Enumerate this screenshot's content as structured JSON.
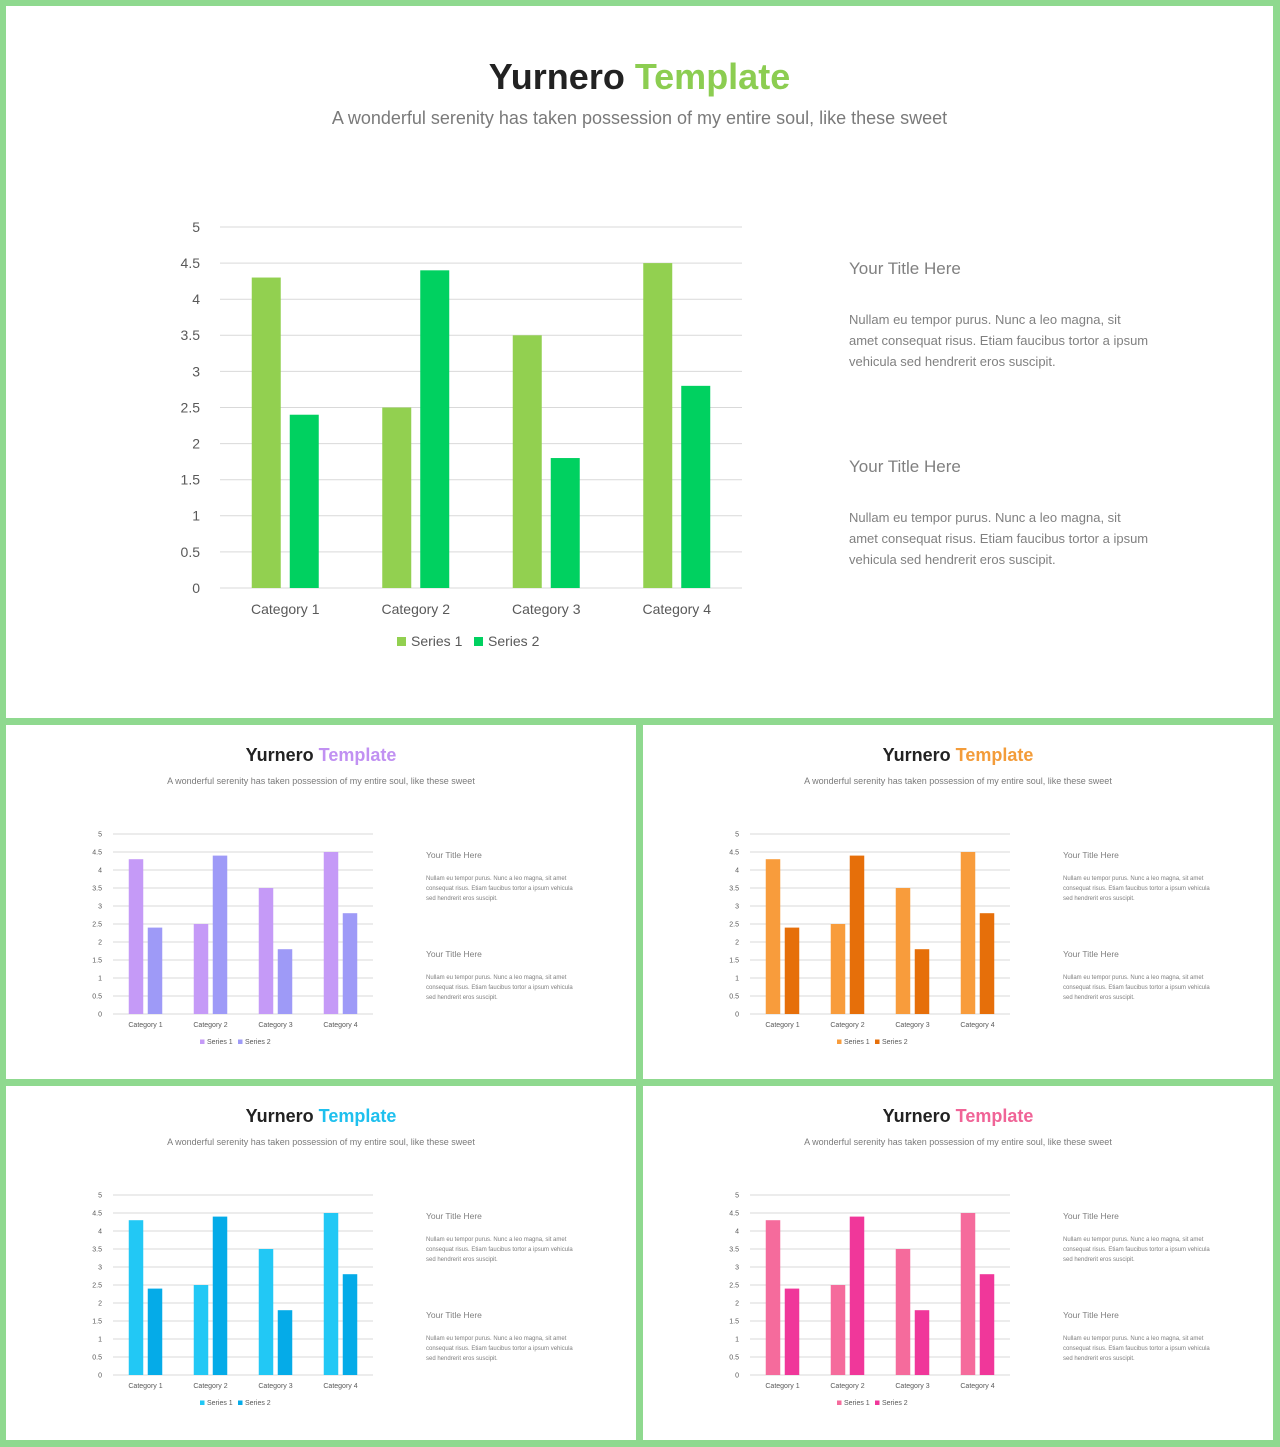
{
  "slides": [
    {
      "id": "main",
      "title_part1": "Yurnero",
      "title_part2": "Template",
      "accent_color": "#8ccd51",
      "subtitle": "A wonderful serenity has taken possession of my entire soul, like these sweet",
      "series_colors": [
        "#92d050",
        "#00d160"
      ],
      "blocks": [
        {
          "heading": "Your Title Here",
          "body": "Nullam eu tempor purus. Nunc a leo magna, sit amet consequat risus. Etiam faucibus tortor a ipsum vehicula sed hendrerit eros suscipit."
        },
        {
          "heading": "Your Title Here",
          "body": "Nullam eu tempor purus. Nunc a leo magna, sit amet consequat risus. Etiam faucibus tortor a ipsum vehicula sed hendrerit eros suscipit."
        }
      ]
    },
    {
      "id": "purple",
      "title_part1": "Yurnero",
      "title_part2": "Template",
      "accent_color": "#c191f2",
      "subtitle": "A wonderful serenity has taken possession of my entire soul, like these sweet",
      "series_colors": [
        "#c59af7",
        "#9e9af7"
      ],
      "blocks": [
        {
          "heading": "Your Title Here",
          "body": "Nullam eu tempor purus. Nunc a leo magna, sit amet consequat risus. Etiam faucibus tortor a ipsum vehicula sed hendrerit eros suscipit."
        },
        {
          "heading": "Your Title Here",
          "body": "Nullam eu tempor purus. Nunc a leo magna, sit amet consequat risus. Etiam faucibus tortor a ipsum vehicula sed hendrerit eros suscipit."
        }
      ]
    },
    {
      "id": "orange",
      "title_part1": "Yurnero",
      "title_part2": "Template",
      "accent_color": "#f39c3a",
      "subtitle": "A wonderful serenity has taken possession of my entire soul, like these sweet",
      "series_colors": [
        "#f89c3c",
        "#e66f0a"
      ],
      "blocks": [
        {
          "heading": "Your Title Here",
          "body": "Nullam eu tempor purus. Nunc a leo magna, sit amet consequat risus. Etiam faucibus tortor a ipsum vehicula sed hendrerit eros suscipit."
        },
        {
          "heading": "Your Title Here",
          "body": "Nullam eu tempor purus. Nunc a leo magna, sit amet consequat risus. Etiam faucibus tortor a ipsum vehicula sed hendrerit eros suscipit."
        }
      ]
    },
    {
      "id": "blue",
      "title_part1": "Yurnero",
      "title_part2": "Template",
      "accent_color": "#1fc0ee",
      "subtitle": "A wonderful serenity has taken possession of my entire soul, like these sweet",
      "series_colors": [
        "#22c8f5",
        "#05abe8"
      ],
      "blocks": [
        {
          "heading": "Your Title Here",
          "body": "Nullam eu tempor purus. Nunc a leo magna, sit amet consequat risus. Etiam faucibus tortor a ipsum vehicula sed hendrerit eros suscipit."
        },
        {
          "heading": "Your Title Here",
          "body": "Nullam eu tempor purus. Nunc a leo magna, sit amet consequat risus. Etiam faucibus tortor a ipsum vehicula sed hendrerit eros suscipit."
        }
      ]
    },
    {
      "id": "pink",
      "title_part1": "Yurnero",
      "title_part2": "Template",
      "accent_color": "#f06497",
      "subtitle": "A wonderful serenity has taken possession of my entire soul, like these sweet",
      "series_colors": [
        "#f56b9c",
        "#f0379a"
      ],
      "blocks": [
        {
          "heading": "Your Title Here",
          "body": "Nullam eu tempor purus. Nunc a leo magna, sit amet consequat risus. Etiam faucibus tortor a ipsum vehicula sed hendrerit eros suscipit."
        },
        {
          "heading": "Your Title Here",
          "body": "Nullam eu tempor purus. Nunc a leo magna, sit amet consequat risus. Etiam faucibus tortor a ipsum vehicula sed hendrerit eros suscipit."
        }
      ]
    }
  ],
  "chart_data": {
    "type": "bar",
    "categories": [
      "Category 1",
      "Category 2",
      "Category 3",
      "Category 4"
    ],
    "series": [
      {
        "name": "Series 1",
        "values": [
          4.3,
          2.5,
          3.5,
          4.5
        ]
      },
      {
        "name": "Series 2",
        "values": [
          2.4,
          4.4,
          1.8,
          2.8
        ]
      }
    ],
    "ylim": [
      0,
      5
    ],
    "yticks": [
      "0",
      "0.5",
      "1",
      "1.5",
      "2",
      "2.5",
      "3",
      "3.5",
      "4",
      "4.5",
      "5"
    ],
    "grid": true,
    "legend": "bottom"
  }
}
